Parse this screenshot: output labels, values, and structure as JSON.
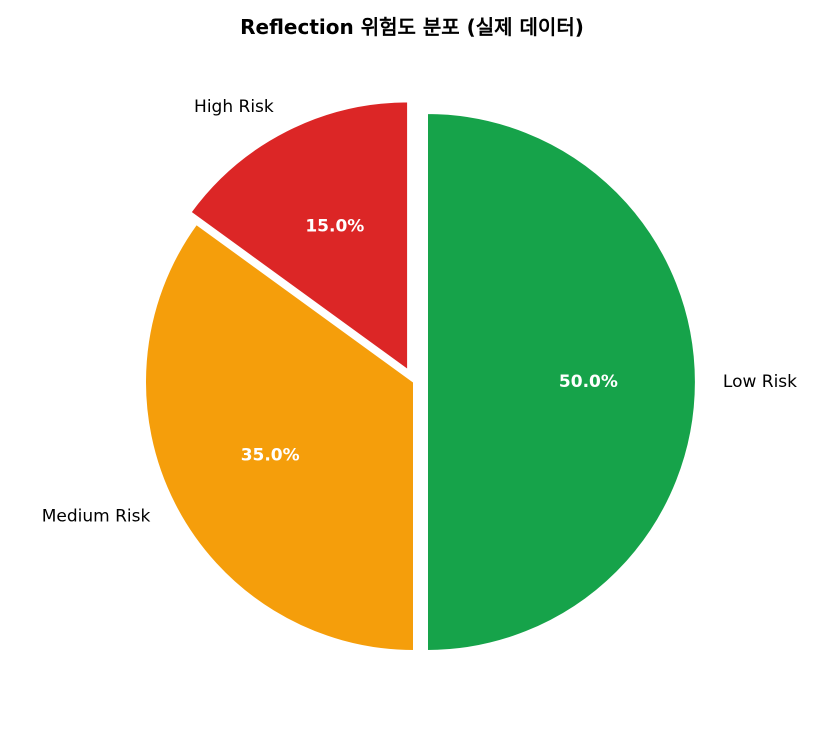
{
  "chart_data": {
    "type": "pie",
    "title": "Reflection 위험도 분포 (실제 데이터)",
    "slices": [
      {
        "label": "Low Risk",
        "value": 50.0,
        "pct_label": "50.0%",
        "color": "#16a34a"
      },
      {
        "label": "Medium Risk",
        "value": 35.0,
        "pct_label": "35.0%",
        "color": "#f59e0b"
      },
      {
        "label": "High Risk",
        "value": 15.0,
        "pct_label": "15.0%",
        "color": "#dc2626"
      }
    ],
    "exploded": [
      "Low Risk",
      "High Risk"
    ],
    "start_angle": "top",
    "direction": "clockwise",
    "legend": false
  }
}
